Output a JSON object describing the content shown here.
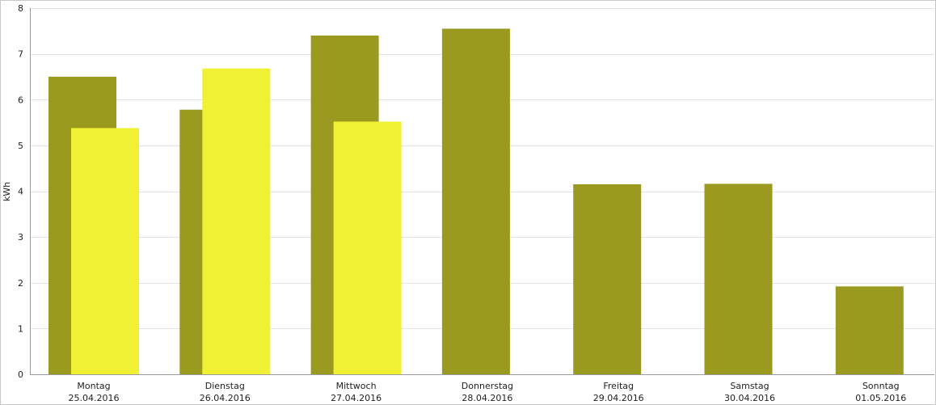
{
  "chart_data": {
    "type": "bar",
    "title": "",
    "xlabel": "",
    "ylabel": "kWh",
    "ylim": [
      0,
      8
    ],
    "yticks": [
      0,
      1,
      2,
      3,
      4,
      5,
      6,
      7,
      8
    ],
    "grid": true,
    "legend": "none",
    "categories": [
      [
        "Montag",
        "25.04.2016"
      ],
      [
        "Dienstag",
        "26.04.2016"
      ],
      [
        "Mittwoch",
        "27.04.2016"
      ],
      [
        "Donnerstag",
        "28.04.2016"
      ],
      [
        "Freitag",
        "29.04.2016"
      ],
      [
        "Samstag",
        "30.04.2016"
      ],
      [
        "Sonntag",
        "01.05.2016"
      ]
    ],
    "series": [
      {
        "color": "#999a1f",
        "values": [
          6.5,
          5.78,
          7.4,
          7.55,
          4.15,
          4.16,
          1.92
        ]
      },
      {
        "color": "#f0f035",
        "values": [
          5.38,
          6.68,
          5.52,
          null,
          null,
          null,
          null
        ]
      }
    ]
  }
}
